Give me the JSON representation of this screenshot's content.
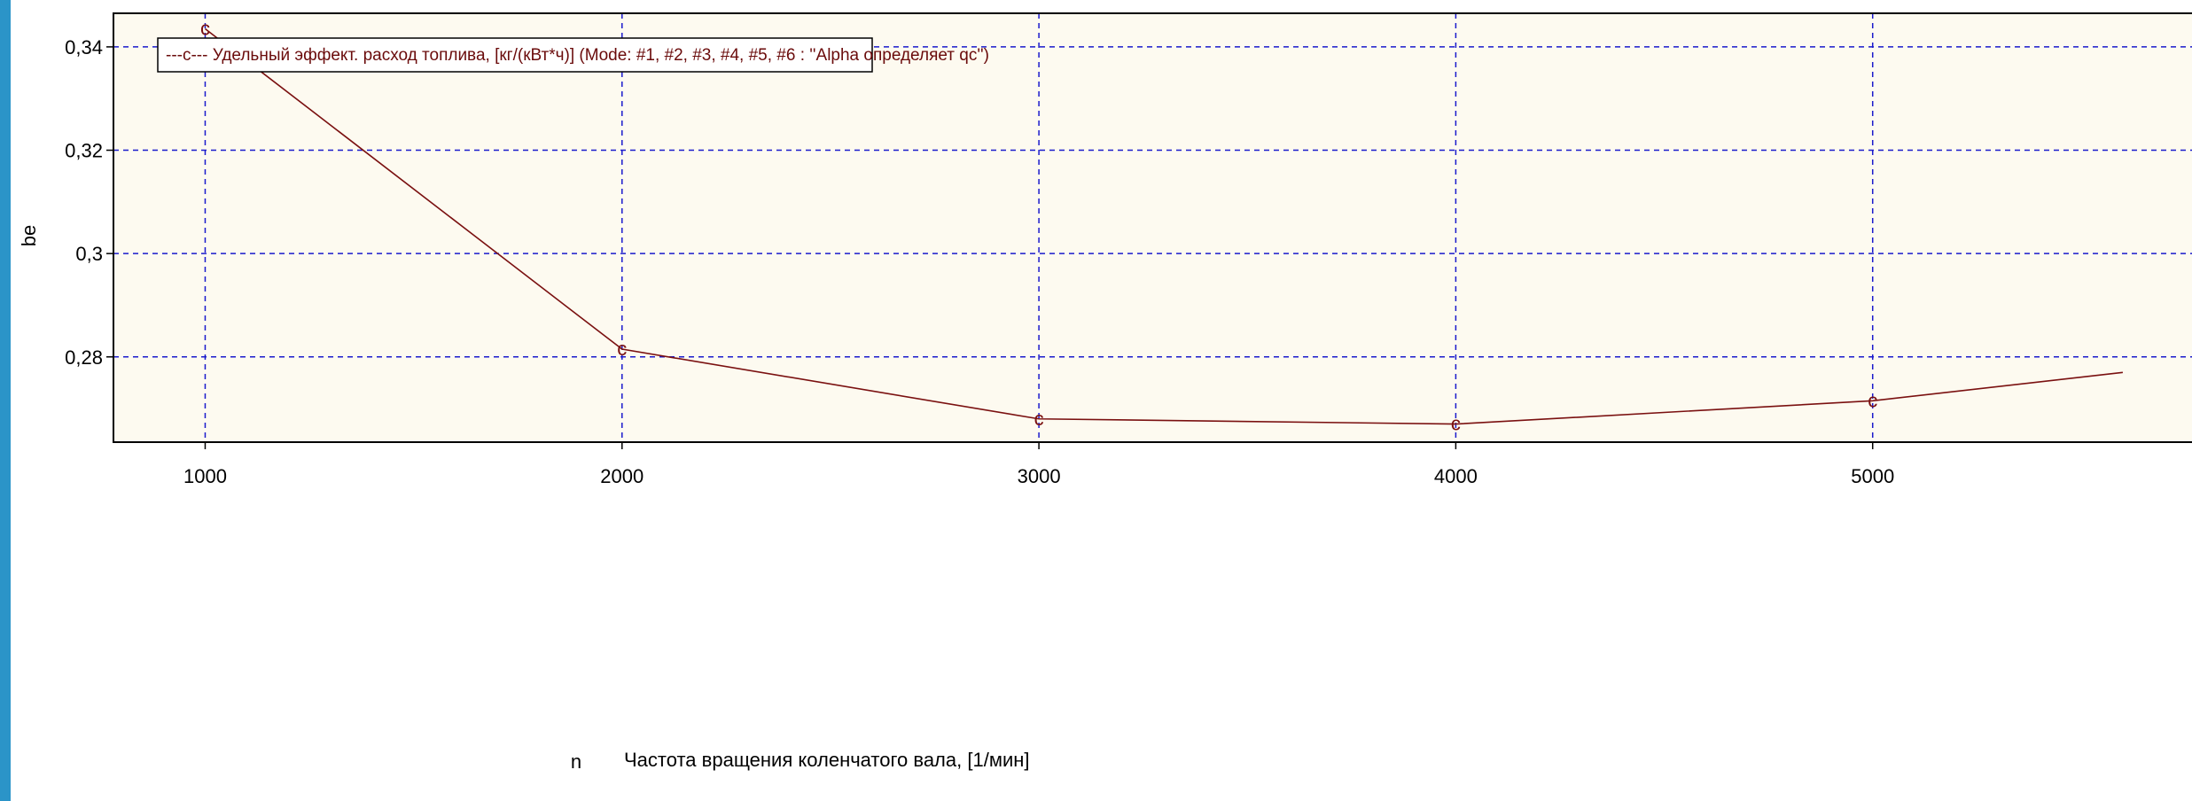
{
  "colors": {
    "frame_border": "#2b94c8",
    "plot_background": "#fdfaf0",
    "grid": "#1a1acc",
    "series": "#7a1010"
  },
  "chart_data": {
    "type": "line",
    "xlabel": "n",
    "x_caption": "Частота вращения коленчатого вала, [1/мин]",
    "ylabel": "be",
    "xlim": [
      780,
      5900
    ],
    "ylim": [
      0.2635,
      0.3465
    ],
    "x_ticks": [
      1000,
      2000,
      3000,
      4000,
      5000
    ],
    "x_tick_labels": [
      "1000",
      "2000",
      "3000",
      "4000",
      "5000"
    ],
    "y_ticks": [
      0.28,
      0.3,
      0.32,
      0.34
    ],
    "y_tick_labels": [
      "0,28",
      "0,3",
      "0,32",
      "0,34"
    ],
    "grid": true,
    "legend_position": "top-left",
    "series": [
      {
        "name": "Удельный эффект. расход топлива, [кг/(кВт*ч)] (Mode: #1, #2, #3, #4, #5, #6 : ''Alpha определяет qc'')",
        "legend_label": "---c---   Удельный эффект. расход топлива, [кг/(кВт*ч)] (Mode: #1, #2, #3, #4, #5, #6 : ''Alpha определяет qc'')",
        "marker": "c",
        "x": [
          1000,
          2000,
          3000,
          4000,
          5000,
          5600
        ],
        "y": [
          0.3435,
          0.2815,
          0.268,
          0.267,
          0.2715,
          0.277
        ],
        "marked": [
          true,
          true,
          true,
          true,
          true,
          false
        ]
      }
    ]
  }
}
